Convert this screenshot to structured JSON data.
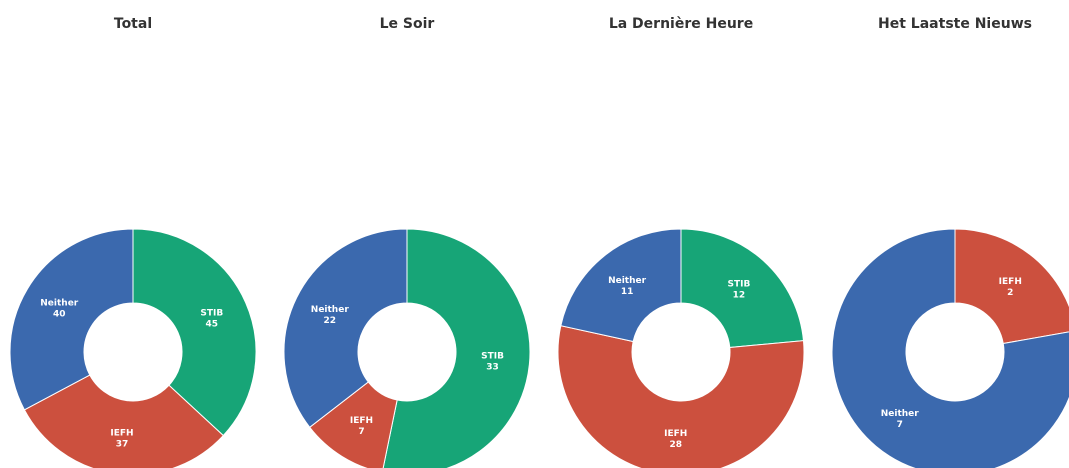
{
  "chart_data": [
    {
      "type": "donut",
      "title": "Total",
      "categories": [
        "STIB",
        "IEFH",
        "Neither"
      ],
      "values": [
        45,
        37,
        40
      ],
      "colors": [
        "#17a577",
        "#cc503e",
        "#3b69ae"
      ]
    },
    {
      "type": "donut",
      "title": "Le Soir",
      "categories": [
        "STIB",
        "IEFH",
        "Neither"
      ],
      "values": [
        33,
        7,
        22
      ],
      "colors": [
        "#17a577",
        "#cc503e",
        "#3b69ae"
      ]
    },
    {
      "type": "donut",
      "title": "La Dernière Heure",
      "categories": [
        "STIB",
        "IEFH",
        "Neither"
      ],
      "values": [
        12,
        28,
        11
      ],
      "colors": [
        "#17a577",
        "#cc503e",
        "#3b69ae"
      ]
    },
    {
      "type": "donut",
      "title": "Het Laatste Nieuws",
      "categories": [
        "STIB",
        "IEFH",
        "Neither"
      ],
      "values": [
        0,
        2,
        7
      ],
      "colors": [
        "#17a577",
        "#cc503e",
        "#3b69ae"
      ]
    }
  ]
}
